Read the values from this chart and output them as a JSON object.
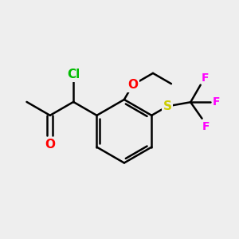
{
  "bg_color": "#eeeeee",
  "bond_color": "#000000",
  "bond_width": 1.8,
  "atom_colors": {
    "Cl": "#00bb00",
    "O": "#ff0000",
    "S": "#cccc00",
    "F": "#ff00ff",
    "C": "#000000"
  },
  "font_size": 10,
  "figsize": [
    3.0,
    3.0
  ],
  "dpi": 100,
  "xlim": [
    0,
    10
  ],
  "ylim": [
    0,
    10
  ]
}
